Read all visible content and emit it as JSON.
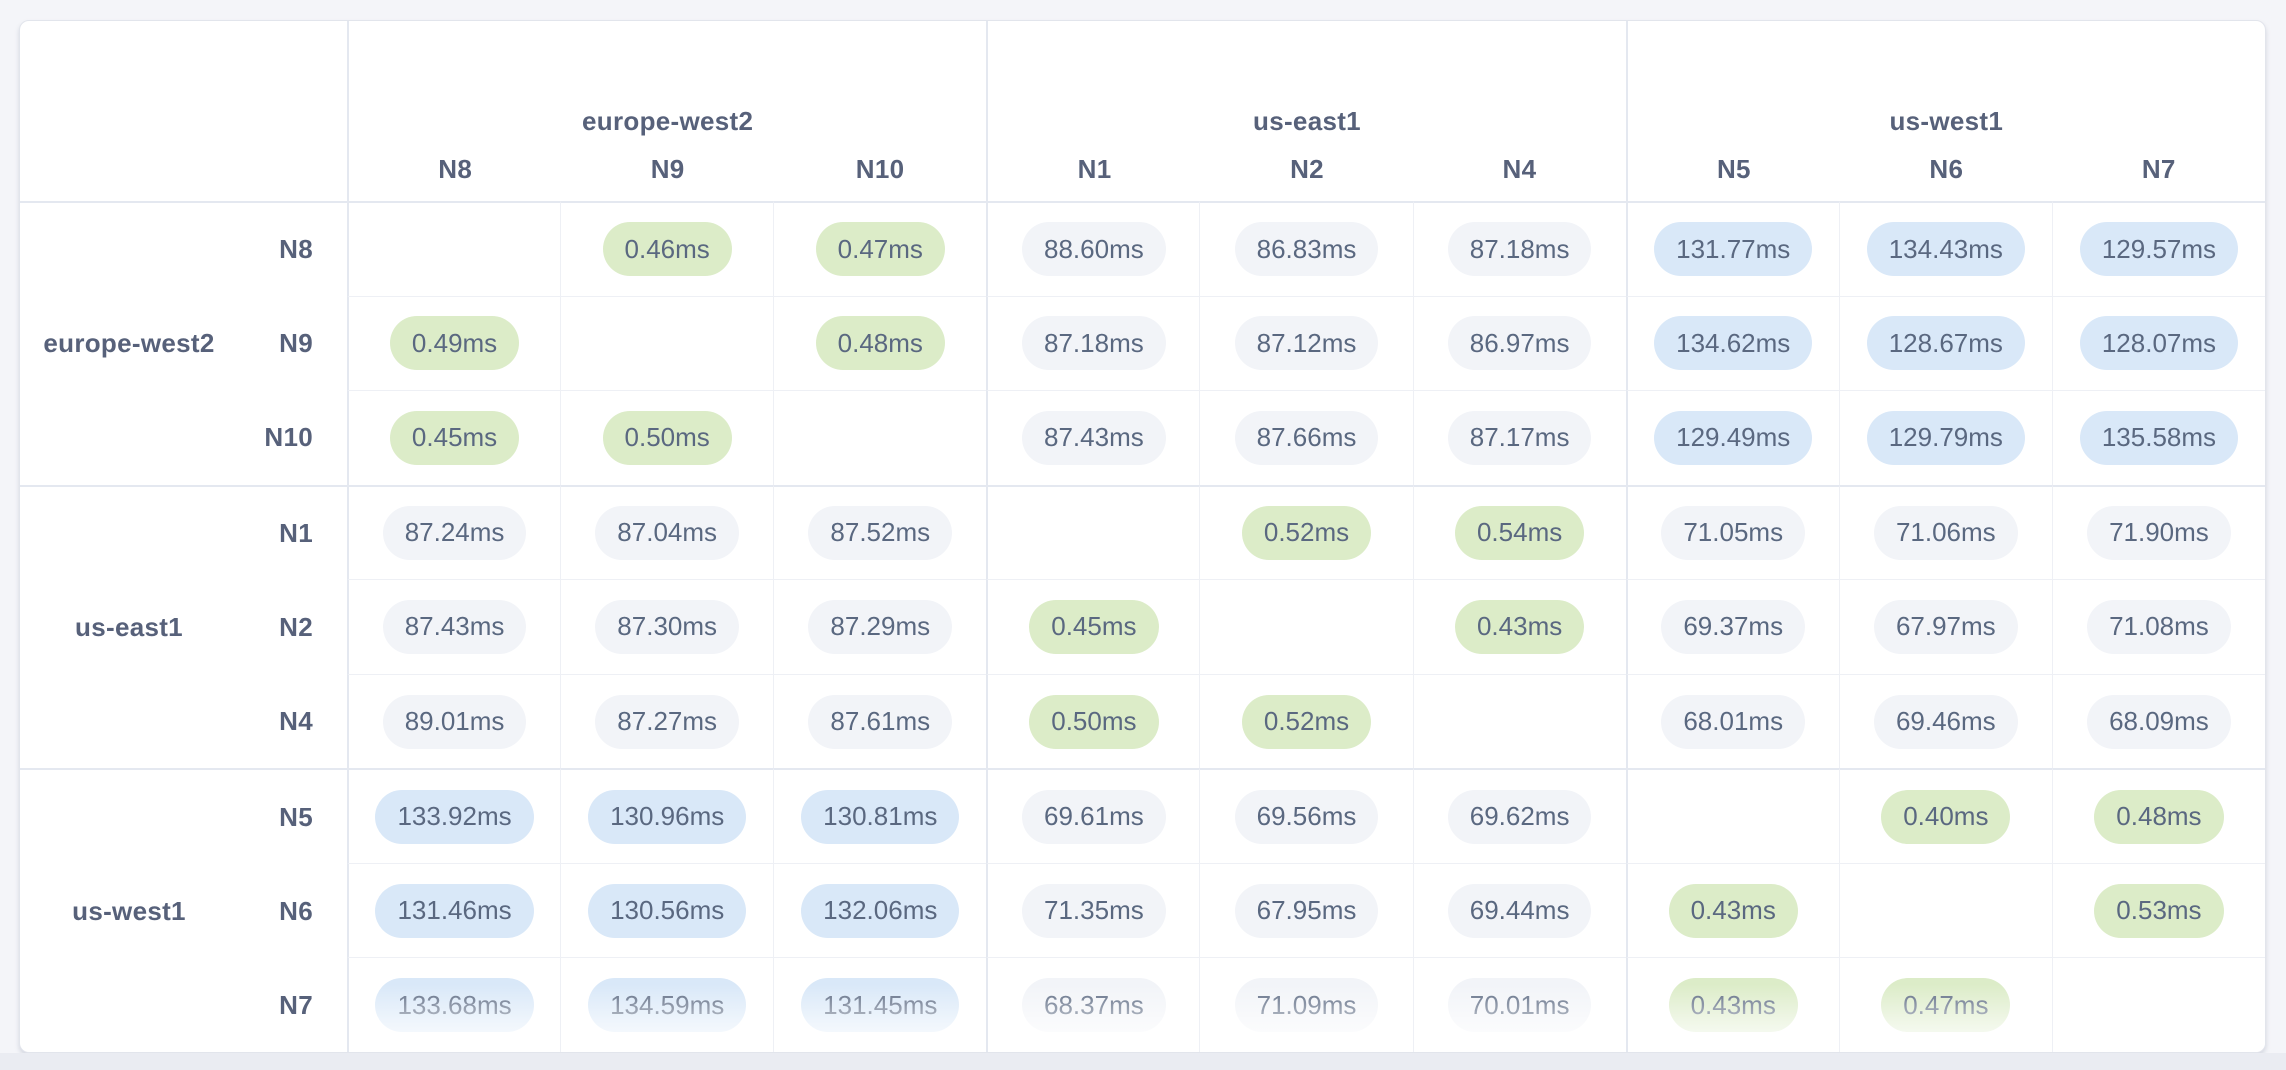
{
  "colors": {
    "page_background": "#f4f5f9",
    "card_background": "#ffffff",
    "pill_low_green": "#dcecc8",
    "pill_mid_neutral": "#f2f4f8",
    "pill_high_blue": "#d9e8f8",
    "pill_text": "#5a6880",
    "label_text": "#57617a"
  },
  "matrix": {
    "unit": "ms",
    "regions": [
      {
        "region": "europe-west2",
        "nodes": [
          "N8",
          "N9",
          "N10"
        ]
      },
      {
        "region": "us-east1",
        "nodes": [
          "N1",
          "N2",
          "N4"
        ]
      },
      {
        "region": "us-west1",
        "nodes": [
          "N5",
          "N6",
          "N7"
        ]
      }
    ],
    "rows": [
      {
        "node": "N8",
        "region": "europe-west2",
        "cells": [
          {
            "value": "",
            "level": "self"
          },
          {
            "value": "0.46ms",
            "level": "low"
          },
          {
            "value": "0.47ms",
            "level": "low"
          },
          {
            "value": "88.60ms",
            "level": "mid"
          },
          {
            "value": "86.83ms",
            "level": "mid"
          },
          {
            "value": "87.18ms",
            "level": "mid"
          },
          {
            "value": "131.77ms",
            "level": "high"
          },
          {
            "value": "134.43ms",
            "level": "high"
          },
          {
            "value": "129.57ms",
            "level": "high"
          }
        ]
      },
      {
        "node": "N9",
        "region": "europe-west2",
        "cells": [
          {
            "value": "0.49ms",
            "level": "low"
          },
          {
            "value": "",
            "level": "self"
          },
          {
            "value": "0.48ms",
            "level": "low"
          },
          {
            "value": "87.18ms",
            "level": "mid"
          },
          {
            "value": "87.12ms",
            "level": "mid"
          },
          {
            "value": "86.97ms",
            "level": "mid"
          },
          {
            "value": "134.62ms",
            "level": "high"
          },
          {
            "value": "128.67ms",
            "level": "high"
          },
          {
            "value": "128.07ms",
            "level": "high"
          }
        ]
      },
      {
        "node": "N10",
        "region": "europe-west2",
        "cells": [
          {
            "value": "0.45ms",
            "level": "low"
          },
          {
            "value": "0.50ms",
            "level": "low"
          },
          {
            "value": "",
            "level": "self"
          },
          {
            "value": "87.43ms",
            "level": "mid"
          },
          {
            "value": "87.66ms",
            "level": "mid"
          },
          {
            "value": "87.17ms",
            "level": "mid"
          },
          {
            "value": "129.49ms",
            "level": "high"
          },
          {
            "value": "129.79ms",
            "level": "high"
          },
          {
            "value": "135.58ms",
            "level": "high"
          }
        ]
      },
      {
        "node": "N1",
        "region": "us-east1",
        "cells": [
          {
            "value": "87.24ms",
            "level": "mid"
          },
          {
            "value": "87.04ms",
            "level": "mid"
          },
          {
            "value": "87.52ms",
            "level": "mid"
          },
          {
            "value": "",
            "level": "self"
          },
          {
            "value": "0.52ms",
            "level": "low"
          },
          {
            "value": "0.54ms",
            "level": "low"
          },
          {
            "value": "71.05ms",
            "level": "mid"
          },
          {
            "value": "71.06ms",
            "level": "mid"
          },
          {
            "value": "71.90ms",
            "level": "mid"
          }
        ]
      },
      {
        "node": "N2",
        "region": "us-east1",
        "cells": [
          {
            "value": "87.43ms",
            "level": "mid"
          },
          {
            "value": "87.30ms",
            "level": "mid"
          },
          {
            "value": "87.29ms",
            "level": "mid"
          },
          {
            "value": "0.45ms",
            "level": "low"
          },
          {
            "value": "",
            "level": "self"
          },
          {
            "value": "0.43ms",
            "level": "low"
          },
          {
            "value": "69.37ms",
            "level": "mid"
          },
          {
            "value": "67.97ms",
            "level": "mid"
          },
          {
            "value": "71.08ms",
            "level": "mid"
          }
        ]
      },
      {
        "node": "N4",
        "region": "us-east1",
        "cells": [
          {
            "value": "89.01ms",
            "level": "mid"
          },
          {
            "value": "87.27ms",
            "level": "mid"
          },
          {
            "value": "87.61ms",
            "level": "mid"
          },
          {
            "value": "0.50ms",
            "level": "low"
          },
          {
            "value": "0.52ms",
            "level": "low"
          },
          {
            "value": "",
            "level": "self"
          },
          {
            "value": "68.01ms",
            "level": "mid"
          },
          {
            "value": "69.46ms",
            "level": "mid"
          },
          {
            "value": "68.09ms",
            "level": "mid"
          }
        ]
      },
      {
        "node": "N5",
        "region": "us-west1",
        "cells": [
          {
            "value": "133.92ms",
            "level": "high"
          },
          {
            "value": "130.96ms",
            "level": "high"
          },
          {
            "value": "130.81ms",
            "level": "high"
          },
          {
            "value": "69.61ms",
            "level": "mid"
          },
          {
            "value": "69.56ms",
            "level": "mid"
          },
          {
            "value": "69.62ms",
            "level": "mid"
          },
          {
            "value": "",
            "level": "self"
          },
          {
            "value": "0.40ms",
            "level": "low"
          },
          {
            "value": "0.48ms",
            "level": "low"
          }
        ]
      },
      {
        "node": "N6",
        "region": "us-west1",
        "cells": [
          {
            "value": "131.46ms",
            "level": "high"
          },
          {
            "value": "130.56ms",
            "level": "high"
          },
          {
            "value": "132.06ms",
            "level": "high"
          },
          {
            "value": "71.35ms",
            "level": "mid"
          },
          {
            "value": "67.95ms",
            "level": "mid"
          },
          {
            "value": "69.44ms",
            "level": "mid"
          },
          {
            "value": "0.43ms",
            "level": "low"
          },
          {
            "value": "",
            "level": "self"
          },
          {
            "value": "0.53ms",
            "level": "low"
          }
        ]
      },
      {
        "node": "N7",
        "region": "us-west1",
        "cells": [
          {
            "value": "133.68ms",
            "level": "high"
          },
          {
            "value": "134.59ms",
            "level": "high"
          },
          {
            "value": "131.45ms",
            "level": "high"
          },
          {
            "value": "68.37ms",
            "level": "mid"
          },
          {
            "value": "71.09ms",
            "level": "mid"
          },
          {
            "value": "70.01ms",
            "level": "mid"
          },
          {
            "value": "0.43ms",
            "level": "low"
          },
          {
            "value": "0.47ms",
            "level": "low"
          },
          {
            "value": "",
            "level": "self"
          }
        ]
      }
    ]
  }
}
